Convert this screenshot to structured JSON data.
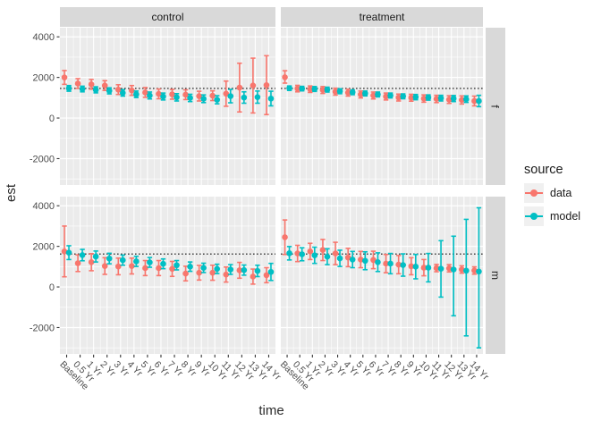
{
  "chart_data": {
    "type": "pointrange",
    "title": "",
    "xlabel": "time",
    "ylabel": "est",
    "categories": [
      "Baseline",
      "0.5 Yr",
      "1 Yr",
      "2 Yr",
      "3 Yr",
      "4 Yr",
      "5 Yr",
      "6 Yr",
      "7 Yr",
      "8 Yr",
      "9 Yr",
      "10 Yr",
      "11 Yr",
      "12 Yr",
      "13 Yr",
      "14 Yr"
    ],
    "y_ticks": [
      -2000,
      0,
      2000,
      4000
    ],
    "ylim": [
      -3300,
      4450
    ],
    "grid": true,
    "facet_cols": [
      "control",
      "treatment"
    ],
    "facet_rows": [
      "f",
      "m"
    ],
    "ref_lines": {
      "f": 1460,
      "m": 1625
    },
    "legend": {
      "title": "source",
      "position": "right",
      "items": [
        {
          "label": "data",
          "color": "#F8766D"
        },
        {
          "label": "model",
          "color": "#00BFC4"
        }
      ]
    },
    "colors": {
      "panel_bg": "#EBEBEB",
      "strip_bg": "#D9D9D9",
      "grid": "#FFFFFF",
      "legend_key_bg": "#F0F0F0",
      "axis_text": "#4D4D4D",
      "tick_mark": "#333333",
      "ref_line": "#111111"
    },
    "panels": [
      {
        "col": "control",
        "row": "f",
        "series": [
          {
            "name": "data",
            "est": [
              2000,
              1700,
              1660,
              1600,
              1400,
              1360,
              1260,
              1190,
              1170,
              1150,
              1080,
              1100,
              1200,
              1500,
              1600,
              1620
            ],
            "lo": [
              1660,
              1460,
              1420,
              1360,
              1160,
              1120,
              1020,
              950,
              930,
              910,
              840,
              860,
              580,
              300,
              250,
              170
            ],
            "hi": [
              2340,
              1940,
              1900,
              1840,
              1640,
              1600,
              1500,
              1430,
              1410,
              1390,
              1320,
              1340,
              1820,
              2700,
              2950,
              3070
            ]
          },
          {
            "name": "model",
            "est": [
              1460,
              1430,
              1390,
              1340,
              1240,
              1170,
              1110,
              1060,
              1020,
              990,
              950,
              900,
              1080,
              1010,
              1030,
              960
            ],
            "lo": [
              1320,
              1290,
              1240,
              1190,
              1080,
              1010,
              940,
              890,
              840,
              810,
              760,
              700,
              750,
              730,
              730,
              600
            ],
            "hi": [
              1600,
              1570,
              1540,
              1490,
              1400,
              1330,
              1280,
              1230,
              1200,
              1170,
              1140,
              1100,
              1410,
              1290,
              1330,
              1320
            ]
          }
        ]
      },
      {
        "col": "treatment",
        "row": "f",
        "series": [
          {
            "name": "data",
            "est": [
              2010,
              1450,
              1420,
              1380,
              1300,
              1250,
              1160,
              1110,
              1060,
              1010,
              1000,
              960,
              940,
              910,
              890,
              840
            ],
            "lo": [
              1720,
              1290,
              1260,
              1210,
              1130,
              1080,
              990,
              940,
              890,
              840,
              830,
              780,
              760,
              720,
              690,
              600
            ],
            "hi": [
              2330,
              1610,
              1580,
              1550,
              1470,
              1420,
              1330,
              1280,
              1230,
              1180,
              1170,
              1140,
              1120,
              1100,
              1090,
              1080
            ]
          },
          {
            "name": "model",
            "est": [
              1470,
              1450,
              1430,
              1400,
              1320,
              1270,
              1210,
              1160,
              1110,
              1070,
              1030,
              1010,
              980,
              960,
              930,
              840
            ],
            "lo": [
              1360,
              1340,
              1310,
              1280,
              1200,
              1150,
              1090,
              1040,
              990,
              950,
              900,
              880,
              840,
              810,
              770,
              560
            ],
            "hi": [
              1580,
              1560,
              1550,
              1520,
              1440,
              1390,
              1330,
              1280,
              1230,
              1190,
              1160,
              1140,
              1120,
              1110,
              1090,
              1120
            ]
          }
        ]
      },
      {
        "col": "control",
        "row": "m",
        "series": [
          {
            "name": "data",
            "est": [
              1750,
              1170,
              1220,
              1030,
              1010,
              1030,
              930,
              930,
              890,
              660,
              700,
              700,
              610,
              820,
              510,
              580
            ],
            "lo": [
              500,
              760,
              800,
              620,
              600,
              640,
              560,
              560,
              520,
              300,
              340,
              330,
              240,
              430,
              140,
              210
            ],
            "hi": [
              3000,
              1580,
              1640,
              1440,
              1420,
              1420,
              1300,
              1300,
              1260,
              1020,
              1060,
              1070,
              980,
              1210,
              880,
              950
            ]
          },
          {
            "name": "model",
            "est": [
              1690,
              1570,
              1500,
              1400,
              1320,
              1260,
              1210,
              1140,
              1070,
              1000,
              940,
              890,
              860,
              830,
              790,
              740
            ],
            "lo": [
              1350,
              1290,
              1230,
              1140,
              1070,
              1010,
              970,
              900,
              840,
              770,
              710,
              660,
              620,
              580,
              510,
              320
            ],
            "hi": [
              2030,
              1850,
              1770,
              1660,
              1570,
              1510,
              1450,
              1380,
              1300,
              1230,
              1170,
              1120,
              1100,
              1080,
              1070,
              1160
            ]
          }
        ]
      },
      {
        "col": "treatment",
        "row": "m",
        "series": [
          {
            "name": "data",
            "est": [
              2450,
              1650,
              1750,
              1820,
              1650,
              1450,
              1350,
              1330,
              1150,
              1100,
              1020,
              950,
              930,
              920,
              860,
              810
            ],
            "lo": [
              1600,
              1250,
              1350,
              1300,
              1100,
              1000,
              950,
              900,
              700,
              650,
              600,
              550,
              750,
              740,
              680,
              630
            ],
            "hi": [
              3300,
              2050,
              2150,
              2340,
              2200,
              1900,
              1750,
              1760,
              1600,
              1550,
              1440,
              1350,
              1110,
              1100,
              1040,
              990
            ]
          },
          {
            "name": "model",
            "est": [
              1660,
              1610,
              1560,
              1490,
              1410,
              1350,
              1290,
              1220,
              1150,
              1080,
              1000,
              950,
              900,
              860,
              800,
              760
            ],
            "lo": [
              1330,
              1290,
              1160,
              1100,
              1010,
              950,
              850,
              760,
              650,
              530,
              400,
              250,
              -500,
              -1420,
              -2410,
              -3000
            ],
            "hi": [
              1990,
              1930,
              1960,
              1880,
              1810,
              1750,
              1730,
              1680,
              1650,
              1630,
              1600,
              1650,
              2280,
              2500,
              3330,
              3900
            ]
          }
        ]
      }
    ]
  }
}
